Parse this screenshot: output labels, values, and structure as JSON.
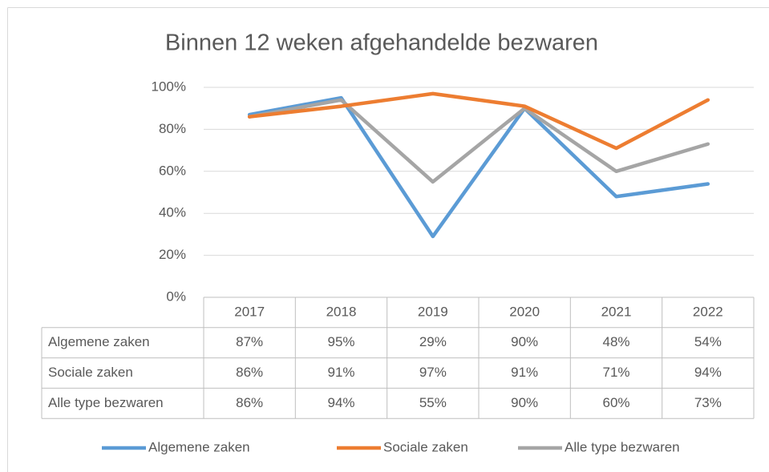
{
  "chart_data": {
    "type": "line",
    "title": "Binnen 12 weken afgehandelde bezwaren",
    "categories": [
      "2017",
      "2018",
      "2019",
      "2020",
      "2021",
      "2022"
    ],
    "series": [
      {
        "name": "Algemene zaken",
        "color": "#5b9bd5",
        "values": [
          87,
          95,
          29,
          90,
          48,
          54
        ],
        "value_labels": [
          "87%",
          "95%",
          "29%",
          "90%",
          "48%",
          "54%"
        ]
      },
      {
        "name": "Sociale zaken",
        "color": "#ed7d31",
        "values": [
          86,
          91,
          97,
          91,
          71,
          94
        ],
        "value_labels": [
          "86%",
          "91%",
          "97%",
          "91%",
          "71%",
          "94%"
        ]
      },
      {
        "name": "Alle type bezwaren",
        "color": "#a5a5a5",
        "values": [
          86,
          94,
          55,
          90,
          60,
          73
        ],
        "value_labels": [
          "86%",
          "94%",
          "55%",
          "90%",
          "60%",
          "73%"
        ]
      }
    ],
    "ylim": [
      0,
      100
    ],
    "yticks": [
      {
        "value": 0,
        "label": "0%"
      },
      {
        "value": 20,
        "label": "20%"
      },
      {
        "value": 40,
        "label": "40%"
      },
      {
        "value": 60,
        "label": "60%"
      },
      {
        "value": 80,
        "label": "80%"
      },
      {
        "value": 100,
        "label": "100%"
      }
    ],
    "grid": true,
    "legend": "bottom"
  }
}
